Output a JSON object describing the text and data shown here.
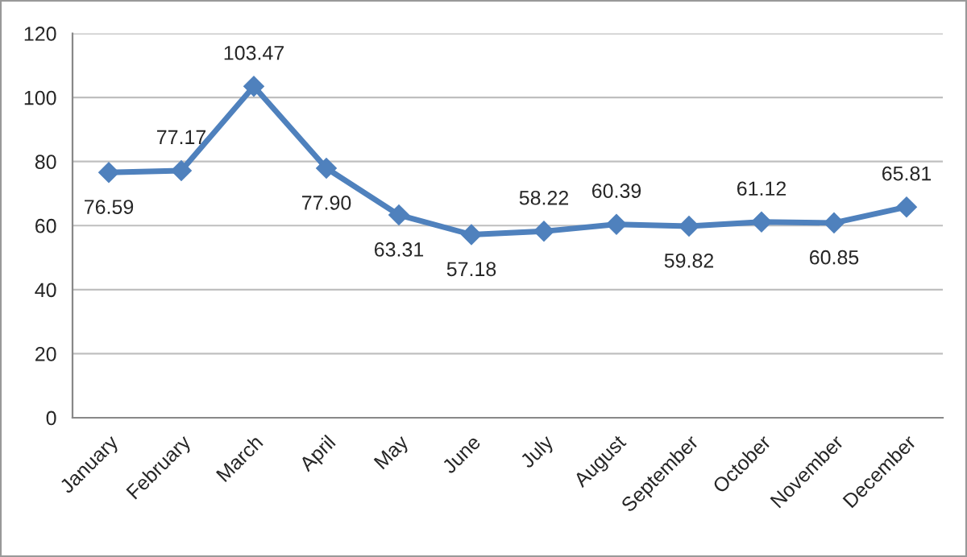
{
  "chart_data": {
    "type": "line",
    "categories": [
      "January",
      "February",
      "March",
      "April",
      "May",
      "June",
      "July",
      "August",
      "September",
      "October",
      "November",
      "December"
    ],
    "series": [
      {
        "color": "#4f81bd",
        "values": [
          76.59,
          77.17,
          103.47,
          77.9,
          63.31,
          57.18,
          58.22,
          60.39,
          59.82,
          61.12,
          60.85,
          65.81
        ],
        "value_labels": [
          "76.59",
          "77.17",
          "103.47",
          "77.90",
          "63.31",
          "57.18",
          "58.22",
          "60.39",
          "59.82",
          "61.12",
          "60.85",
          "65.81"
        ]
      }
    ],
    "ylim": [
      0,
      120
    ],
    "yticks": [
      0,
      20,
      40,
      60,
      80,
      100,
      120
    ],
    "grid": "y",
    "marker": "diamond",
    "line_style": "solid",
    "legend": false
  }
}
